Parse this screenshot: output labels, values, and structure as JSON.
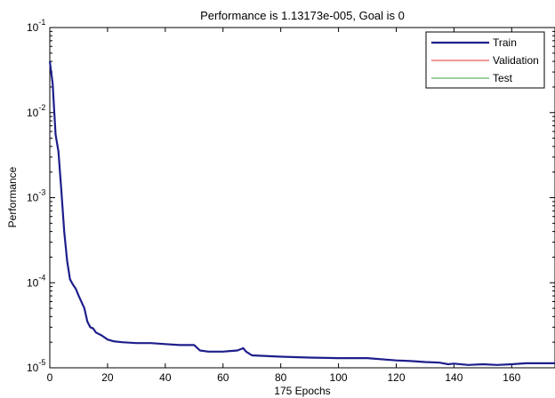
{
  "chart_data": {
    "type": "line",
    "title": "Performance is 1.13173e-005, Goal is 0",
    "xlabel": "175 Epochs",
    "ylabel": "Performance",
    "xlim": [
      0,
      175
    ],
    "ylim": [
      1e-05,
      0.1
    ],
    "yscale": "log",
    "grid": false,
    "legend_position": "top-right",
    "x_ticks": [
      0,
      20,
      40,
      60,
      80,
      100,
      120,
      140,
      160
    ],
    "x_tick_labels": [
      "0",
      "20",
      "40",
      "60",
      "80",
      "100",
      "120",
      "140",
      "160"
    ],
    "y_ticks": [
      1e-05,
      0.0001,
      0.001,
      0.01,
      0.1
    ],
    "y_tick_labels": [
      {
        "base": "10",
        "exp": "-5"
      },
      {
        "base": "10",
        "exp": "-4"
      },
      {
        "base": "10",
        "exp": "-3"
      },
      {
        "base": "10",
        "exp": "-2"
      },
      {
        "base": "10",
        "exp": "-1"
      }
    ],
    "series": [
      {
        "name": "Train",
        "color": "#1e1e8c",
        "x": [
          0,
          1,
          2,
          3,
          4,
          5,
          6,
          7,
          8,
          9,
          10,
          12,
          13,
          14,
          15,
          16,
          18,
          20,
          22,
          25,
          30,
          35,
          40,
          45,
          50,
          52,
          55,
          60,
          65,
          67,
          68,
          70,
          80,
          90,
          100,
          110,
          120,
          125,
          130,
          135,
          138,
          140,
          145,
          150,
          155,
          160,
          165,
          170,
          175
        ],
        "y": [
          0.04,
          0.022,
          0.0055,
          0.0035,
          0.0012,
          0.0004,
          0.00018,
          0.00011,
          9.5e-05,
          8.5e-05,
          7e-05,
          5e-05,
          3.5e-05,
          3e-05,
          2.9e-05,
          2.6e-05,
          2.4e-05,
          2.15e-05,
          2.05e-05,
          2e-05,
          1.95e-05,
          1.95e-05,
          1.9e-05,
          1.85e-05,
          1.85e-05,
          1.6e-05,
          1.55e-05,
          1.55e-05,
          1.6e-05,
          1.7e-05,
          1.55e-05,
          1.4e-05,
          1.35e-05,
          1.32e-05,
          1.3e-05,
          1.3e-05,
          1.22e-05,
          1.2e-05,
          1.17e-05,
          1.15e-05,
          1.1e-05,
          1.12e-05,
          1.08e-05,
          1.1e-05,
          1.08e-05,
          1.1e-05,
          1.13e-05,
          1.13e-05,
          1.13e-05
        ]
      },
      {
        "name": "Validation",
        "color": "#e03030",
        "x": [],
        "y": []
      },
      {
        "name": "Test",
        "color": "#3aa03a",
        "x": [],
        "y": []
      }
    ]
  }
}
